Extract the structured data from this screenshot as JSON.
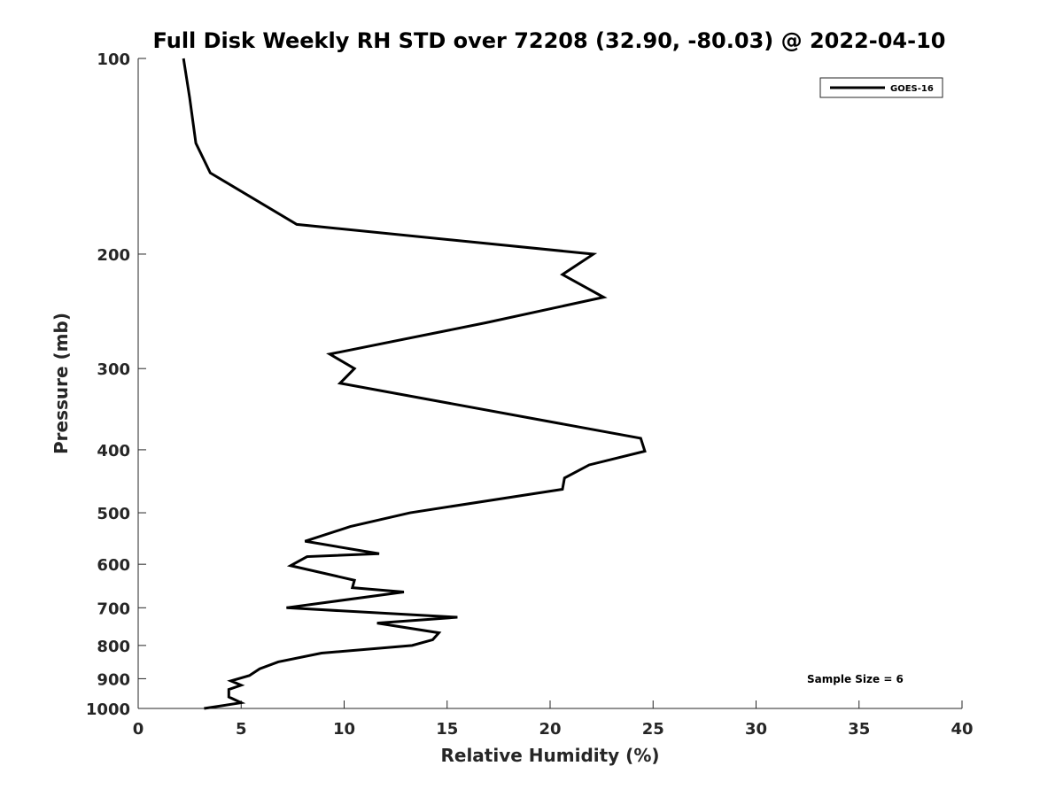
{
  "chart_data": {
    "type": "line",
    "title": "Full Disk Weekly RH STD over 72208 (32.90, -80.03) @ 2022-04-10",
    "xlabel": "Relative Humidity (%)",
    "ylabel": "Pressure (mb)",
    "xlim": [
      0,
      40
    ],
    "ylim": [
      100,
      1000
    ],
    "y_scale": "log",
    "y_reversed": true,
    "x_ticks": [
      0,
      5,
      10,
      15,
      20,
      25,
      30,
      35,
      40
    ],
    "y_ticks": [
      100,
      200,
      300,
      400,
      500,
      600,
      700,
      800,
      900,
      1000
    ],
    "grid": false,
    "legend_position": "top-right",
    "annotation": "Sample Size = 6",
    "series": [
      {
        "name": "GOES-16",
        "color": "#000000",
        "points": [
          [
            2.2,
            100
          ],
          [
            2.5,
            115
          ],
          [
            2.8,
            135
          ],
          [
            3.5,
            150
          ],
          [
            7.7,
            180
          ],
          [
            22.1,
            200
          ],
          [
            20.6,
            215
          ],
          [
            22.6,
            233
          ],
          [
            16.9,
            255
          ],
          [
            9.3,
            285
          ],
          [
            10.5,
            300
          ],
          [
            9.8,
            316
          ],
          [
            24.4,
            384
          ],
          [
            24.6,
            402
          ],
          [
            21.9,
            422
          ],
          [
            20.7,
            442
          ],
          [
            20.6,
            460
          ],
          [
            13.2,
            500
          ],
          [
            10.3,
            525
          ],
          [
            8.1,
            553
          ],
          [
            11.7,
            578
          ],
          [
            8.2,
            584
          ],
          [
            7.4,
            603
          ],
          [
            10.5,
            635
          ],
          [
            10.4,
            652
          ],
          [
            12.9,
            662
          ],
          [
            7.2,
            700
          ],
          [
            15.5,
            724
          ],
          [
            11.6,
            739
          ],
          [
            14.6,
            765
          ],
          [
            14.3,
            784
          ],
          [
            13.3,
            800
          ],
          [
            8.9,
            822
          ],
          [
            6.8,
            848
          ],
          [
            5.9,
            869
          ],
          [
            5.4,
            890
          ],
          [
            4.5,
            907
          ],
          [
            5.0,
            921
          ],
          [
            4.4,
            935
          ],
          [
            4.4,
            960
          ],
          [
            5.0,
            980
          ],
          [
            3.2,
            1000
          ]
        ]
      }
    ]
  }
}
